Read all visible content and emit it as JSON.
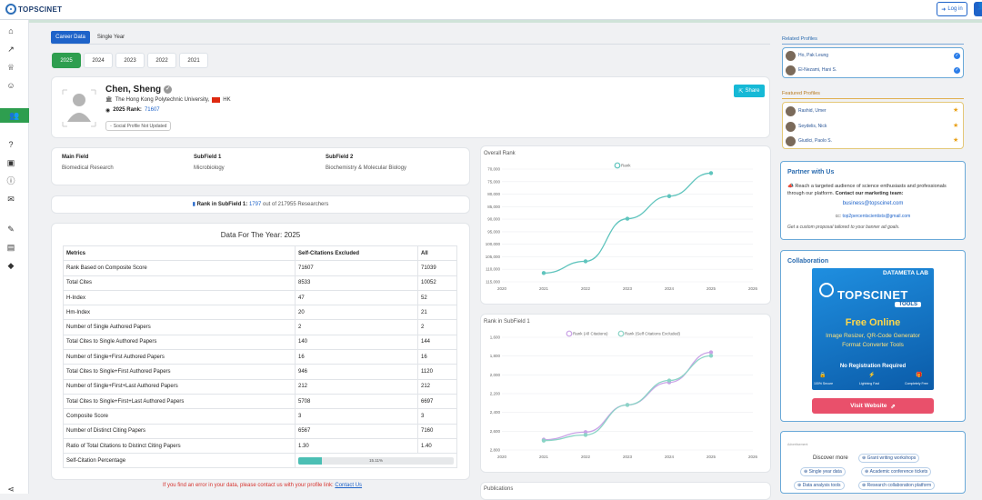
{
  "brand": {
    "logo_text": "TOPSCINET"
  },
  "header": {
    "login_label": "Log in"
  },
  "tabs": {
    "career": "Career Data",
    "single": "Single Year"
  },
  "years": [
    "2025",
    "2024",
    "2023",
    "2022",
    "2021"
  ],
  "profile": {
    "name": "Chen, Sheng",
    "university": "The Hong Kong Polytechnic University,",
    "country_code": "HK",
    "rank_label": "2025 Rank:",
    "rank_value": "71607",
    "social": "Social Profile Not Updated",
    "share_label": "Share"
  },
  "fields": {
    "main_label": "Main Field",
    "main_value": "Biomedical Research",
    "sub1_label": "SubField 1",
    "sub1_value": "Microbiology",
    "sub2_label": "SubField 2",
    "sub2_value": "Biochemistry & Molecular Biology"
  },
  "subfield_rank": {
    "label": "Rank in SubField 1:",
    "rank": "1797",
    "suffix": "out of 217955 Researchers"
  },
  "data_table": {
    "title": "Data For The Year: 2025",
    "headers": [
      "Metrics",
      "Self-Citations Excluded",
      "All"
    ],
    "rows": [
      [
        "Rank Based on Composite Score",
        "71607",
        "71039"
      ],
      [
        "Total Cites",
        "8533",
        "10052"
      ],
      [
        "H-Index",
        "47",
        "52"
      ],
      [
        "Hm-Index",
        "20",
        "21"
      ],
      [
        "Number of Single Authored Papers",
        "2",
        "2"
      ],
      [
        "Total Cites to Single Authored Papers",
        "140",
        "144"
      ],
      [
        "Number of Single+First Authored Papers",
        "16",
        "16"
      ],
      [
        "Total Cites to Single+First Authored Papers",
        "946",
        "1120"
      ],
      [
        "Number of Single+First+Last Authored Papers",
        "212",
        "212"
      ],
      [
        "Total Cites to Single+First+Last Authored Papers",
        "5708",
        "6697"
      ],
      [
        "Composite Score",
        "3",
        "3"
      ],
      [
        "Number of Distinct Citing Papers",
        "6567",
        "7160"
      ],
      [
        "Ratio of Total Citations to Distinct Citing Papers",
        "1.30",
        "1.40"
      ]
    ],
    "self_citation_label": "Self-Citation Percentage",
    "self_citation_text": "15.11%",
    "self_citation_value": 15.11
  },
  "error_note": {
    "text": "If you find an error in your data, please contact us with your profile link:",
    "link": "Contact Us"
  },
  "chart_data": [
    {
      "type": "line",
      "title": "Overall Rank",
      "x": [
        "2020",
        "2021",
        "2022",
        "2023",
        "2024",
        "2025",
        "2026"
      ],
      "y_ticks": [
        "70,000",
        "75,000",
        "80,000",
        "85,000",
        "90,000",
        "95,000",
        "100,000",
        "105,000",
        "110,000",
        "115,000"
      ],
      "series": [
        {
          "name": "Rank",
          "color": "#5fc4bd",
          "points": [
            [
              "2021",
              111500
            ],
            [
              "2022",
              106800
            ],
            [
              "2023",
              89800
            ],
            [
              "2024",
              80800
            ],
            [
              "2025",
              71607
            ]
          ]
        }
      ]
    },
    {
      "type": "line",
      "title": "Rank in SubField 1",
      "x": [
        "2020",
        "2021",
        "2022",
        "2023",
        "2024",
        "2025",
        "2026"
      ],
      "y_ticks": [
        "1,600",
        "1,800",
        "2,000",
        "2,200",
        "2,400",
        "2,600",
        "2,800"
      ],
      "series": [
        {
          "name": "Rank (All Citations)",
          "color": "#c9a2e6",
          "points": [
            [
              "2021",
              2690
            ],
            [
              "2022",
              2610
            ],
            [
              "2023",
              2320
            ],
            [
              "2024",
              2080
            ],
            [
              "2025",
              1760
            ]
          ]
        },
        {
          "name": "Rank (Self Citations Excluded)",
          "color": "#8bd4c6",
          "points": [
            [
              "2021",
              2700
            ],
            [
              "2022",
              2640
            ],
            [
              "2023",
              2320
            ],
            [
              "2024",
              2060
            ],
            [
              "2025",
              1797
            ]
          ]
        }
      ]
    }
  ],
  "publications": {
    "title": "Publications"
  },
  "related": {
    "title": "Related Profiles",
    "items": [
      "Ho, Pak Leung",
      "El-Nezami, Hani S."
    ]
  },
  "featured": {
    "title": "Featured Profiles",
    "items": [
      "Rashid, Umer",
      "Seydelis, Nick",
      "Giudici, Paolo S."
    ]
  },
  "partner": {
    "title": "Partner with Us",
    "desc": "Reach a targeted audience of science enthusiasts and professionals through our platform.",
    "contact_label": "Contact our marketing team:",
    "email1": "business@topscinet.com",
    "cc_label": "cc:",
    "email2": "top2percentscientists@gmail.com",
    "note": "Get a custom proposal tailored to your banner ad goals."
  },
  "collab": {
    "title": "Collaboration",
    "banner_top": "DATAMETA LAB",
    "banner_brand": "TOPSCINET",
    "banner_tools": "TOOLS",
    "free": "Free Online",
    "line1": "Image Resizer, QR-Code Generator",
    "line2": "Format Converter Tools",
    "noreg": "No Registration Required",
    "f1": "100% Secure",
    "f2": "Lightning Fast",
    "f3": "Completely Free",
    "visit": "Visit Website"
  },
  "ad": {
    "label": "Advertisement",
    "discover": "Discover more",
    "pills": [
      "Grant writing workshops",
      "Single year data",
      "Academic conference tickets",
      "Data analysis tools",
      "Research collaboration platform"
    ]
  }
}
